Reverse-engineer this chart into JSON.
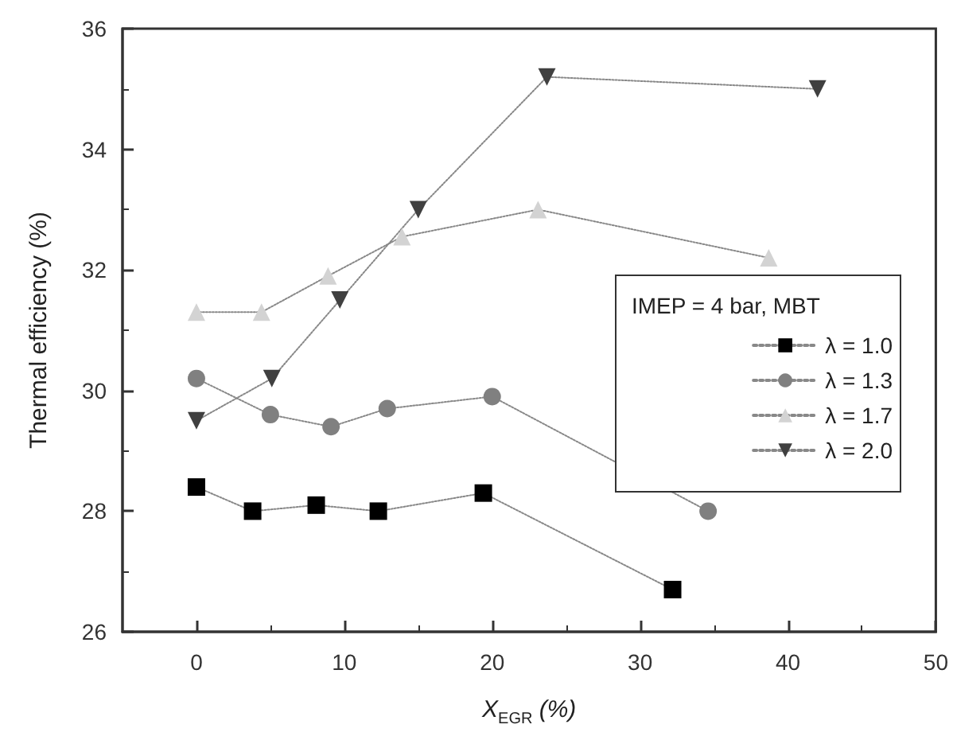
{
  "chart_data": {
    "type": "line",
    "xlabel": "X$_{EGR}$ (%)",
    "ylabel": "Thermal efficiency (%)",
    "legend_title": "IMEP = 4 bar, MBT",
    "xlim": [
      -5,
      50
    ],
    "xticks": [
      0,
      10,
      20,
      30,
      40,
      50
    ],
    "ylim": [
      26,
      36
    ],
    "yticks": [
      26,
      28,
      30,
      32,
      34,
      36
    ],
    "grid": false,
    "legend": "right",
    "line_style": "dotted",
    "series": [
      {
        "name": "λ = 1.0",
        "color": "#000000",
        "marker": "square",
        "x": [
          0,
          3.8,
          8.1,
          12.3,
          19.4,
          32.2
        ],
        "values": [
          28.4,
          28.0,
          28.1,
          28.0,
          28.3,
          26.7
        ]
      },
      {
        "name": "λ = 1.3",
        "color": "#808080",
        "marker": "circle",
        "x": [
          0,
          5,
          9.1,
          12.9,
          20,
          34.6
        ],
        "values": [
          30.2,
          29.6,
          29.4,
          29.7,
          29.9,
          28.0
        ]
      },
      {
        "name": "λ = 1.7",
        "color": "#d3d3d3",
        "marker": "triangle",
        "x": [
          0,
          4.4,
          8.9,
          13.9,
          23.1,
          38.7
        ],
        "values": [
          31.3,
          31.3,
          31.9,
          32.55,
          33.0,
          32.2
        ]
      },
      {
        "name": "λ = 2.0",
        "color": "#404040",
        "marker": "triangle",
        "x": [
          0,
          5.1,
          9.7,
          15,
          23.7,
          42.0
        ],
        "values": [
          29.5,
          30.2,
          31.5,
          33.0,
          35.2,
          35.0
        ]
      }
    ]
  }
}
